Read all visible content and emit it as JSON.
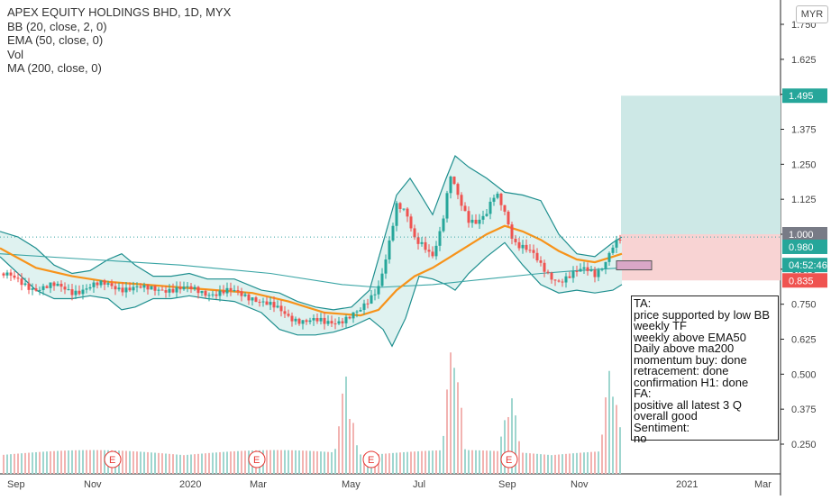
{
  "header": {
    "title": "APEX EQUITY HOLDINGS BHD, 1D, MYX",
    "indicators": [
      "BB (20, close, 2, 0)",
      "EMA (50, close, 0)",
      "Vol",
      "MA (200, close, 0)"
    ],
    "currency": "MYR"
  },
  "notes": {
    "lines": [
      "TA:",
      "price supported by low BB",
      "weekly TF",
      "weekly above EMA50",
      "Daily above ma200",
      "momentum buy: done",
      "retracement: done",
      "confirmation H1: done",
      "FA:",
      "positive all latest 3 Q",
      "overall good",
      "Sentiment:",
      "no"
    ]
  },
  "price_labels": {
    "target": "1.495",
    "current": "1.000",
    "last": "0.980",
    "countdown": "04:52:46",
    "stop": "0.835"
  },
  "colors": {
    "up": "#26a69a",
    "down": "#ef5350",
    "ema": "#f7931a",
    "ma200": "#3aa5a5",
    "bb": "#1f8f8f",
    "bb_fill": "#dff2f0",
    "target_zone": "#cde8e6",
    "stop_zone": "#f8d3d3",
    "earnings": "#e53935"
  },
  "chart_data": {
    "type": "candlestick",
    "title": "APEX EQUITY HOLDINGS BHD, 1D, MYX",
    "x_ticks": [
      "Sep",
      "Nov",
      "2020",
      "Mar",
      "May",
      "Jul",
      "Sep",
      "Nov",
      "2021",
      "Mar"
    ],
    "y_ticks": [
      "1.750",
      "1.625",
      "1.500",
      "1.375",
      "1.250",
      "1.125",
      "1.000",
      "0.875",
      "0.750",
      "0.625",
      "0.500",
      "0.375",
      "0.250"
    ],
    "ylim": [
      0.2,
      1.77
    ],
    "earnings_markers": [
      "E",
      "E",
      "E",
      "E"
    ],
    "price_path": [
      [
        0,
        0.86
      ],
      [
        20,
        0.83
      ],
      [
        40,
        0.81
      ],
      [
        60,
        0.81
      ],
      [
        80,
        0.8
      ],
      [
        100,
        0.81
      ],
      [
        120,
        0.82
      ],
      [
        140,
        0.81
      ],
      [
        160,
        0.8
      ],
      [
        180,
        0.81
      ],
      [
        200,
        0.8
      ],
      [
        220,
        0.8
      ],
      [
        240,
        0.79
      ],
      [
        260,
        0.79
      ],
      [
        280,
        0.78
      ],
      [
        300,
        0.74
      ],
      [
        320,
        0.71
      ],
      [
        340,
        0.69
      ],
      [
        360,
        0.68
      ],
      [
        380,
        0.7
      ],
      [
        400,
        0.72
      ],
      [
        410,
        0.76
      ],
      [
        420,
        0.82
      ],
      [
        430,
        0.95
      ],
      [
        440,
        1.1
      ],
      [
        450,
        1.07
      ],
      [
        460,
        0.98
      ],
      [
        470,
        0.97
      ],
      [
        480,
        0.93
      ],
      [
        490,
        1.02
      ],
      [
        500,
        1.2
      ],
      [
        510,
        1.12
      ],
      [
        520,
        1.06
      ],
      [
        530,
        1.05
      ],
      [
        540,
        1.07
      ],
      [
        550,
        1.14
      ],
      [
        560,
        1.08
      ],
      [
        570,
        0.98
      ],
      [
        580,
        0.96
      ],
      [
        590,
        0.93
      ],
      [
        600,
        0.88
      ],
      [
        610,
        0.85
      ],
      [
        620,
        0.84
      ],
      [
        630,
        0.85
      ],
      [
        640,
        0.86
      ],
      [
        650,
        0.87
      ],
      [
        660,
        0.86
      ],
      [
        670,
        0.9
      ],
      [
        680,
        0.96
      ],
      [
        690,
        0.98
      ]
    ],
    "ema50": [
      [
        0,
        0.95
      ],
      [
        40,
        0.88
      ],
      [
        80,
        0.85
      ],
      [
        120,
        0.83
      ],
      [
        160,
        0.82
      ],
      [
        200,
        0.81
      ],
      [
        240,
        0.8
      ],
      [
        280,
        0.79
      ],
      [
        320,
        0.76
      ],
      [
        360,
        0.72
      ],
      [
        400,
        0.71
      ],
      [
        420,
        0.73
      ],
      [
        440,
        0.8
      ],
      [
        460,
        0.85
      ],
      [
        480,
        0.88
      ],
      [
        500,
        0.92
      ],
      [
        520,
        0.96
      ],
      [
        540,
        1.0
      ],
      [
        560,
        1.03
      ],
      [
        580,
        1.01
      ],
      [
        600,
        0.98
      ],
      [
        620,
        0.94
      ],
      [
        640,
        0.91
      ],
      [
        660,
        0.9
      ],
      [
        680,
        0.92
      ],
      [
        690,
        0.93
      ]
    ],
    "ma200": [
      [
        0,
        0.93
      ],
      [
        100,
        0.91
      ],
      [
        200,
        0.89
      ],
      [
        300,
        0.86
      ],
      [
        380,
        0.82
      ],
      [
        420,
        0.81
      ],
      [
        480,
        0.82
      ],
      [
        540,
        0.84
      ],
      [
        600,
        0.86
      ],
      [
        640,
        0.87
      ],
      [
        690,
        0.88
      ]
    ],
    "bb_upper": [
      [
        0,
        1.01
      ],
      [
        20,
        0.99
      ],
      [
        40,
        0.95
      ],
      [
        60,
        0.89
      ],
      [
        80,
        0.86
      ],
      [
        100,
        0.87
      ],
      [
        120,
        0.91
      ],
      [
        135,
        0.93
      ],
      [
        150,
        0.89
      ],
      [
        170,
        0.85
      ],
      [
        190,
        0.85
      ],
      [
        210,
        0.86
      ],
      [
        230,
        0.84
      ],
      [
        260,
        0.84
      ],
      [
        290,
        0.8
      ],
      [
        310,
        0.79
      ],
      [
        330,
        0.76
      ],
      [
        350,
        0.74
      ],
      [
        370,
        0.73
      ],
      [
        390,
        0.74
      ],
      [
        410,
        0.8
      ],
      [
        425,
        0.97
      ],
      [
        440,
        1.14
      ],
      [
        455,
        1.2
      ],
      [
        465,
        1.15
      ],
      [
        480,
        1.07
      ],
      [
        495,
        1.2
      ],
      [
        505,
        1.28
      ],
      [
        520,
        1.24
      ],
      [
        540,
        1.2
      ],
      [
        560,
        1.15
      ],
      [
        580,
        1.14
      ],
      [
        600,
        1.12
      ],
      [
        620,
        1.0
      ],
      [
        640,
        0.93
      ],
      [
        660,
        0.92
      ],
      [
        680,
        0.97
      ],
      [
        690,
        0.99
      ]
    ],
    "bb_lower": [
      [
        0,
        0.92
      ],
      [
        20,
        0.86
      ],
      [
        40,
        0.8
      ],
      [
        60,
        0.77
      ],
      [
        80,
        0.77
      ],
      [
        100,
        0.78
      ],
      [
        120,
        0.77
      ],
      [
        135,
        0.73
      ],
      [
        150,
        0.74
      ],
      [
        170,
        0.77
      ],
      [
        190,
        0.77
      ],
      [
        210,
        0.78
      ],
      [
        230,
        0.77
      ],
      [
        260,
        0.76
      ],
      [
        290,
        0.72
      ],
      [
        310,
        0.66
      ],
      [
        330,
        0.64
      ],
      [
        350,
        0.64
      ],
      [
        370,
        0.65
      ],
      [
        390,
        0.67
      ],
      [
        410,
        0.7
      ],
      [
        425,
        0.66
      ],
      [
        435,
        0.6
      ],
      [
        450,
        0.7
      ],
      [
        465,
        0.85
      ],
      [
        480,
        0.84
      ],
      [
        495,
        0.82
      ],
      [
        505,
        0.8
      ],
      [
        520,
        0.86
      ],
      [
        540,
        0.92
      ],
      [
        560,
        0.97
      ],
      [
        580,
        0.89
      ],
      [
        600,
        0.82
      ],
      [
        620,
        0.79
      ],
      [
        640,
        0.8
      ],
      [
        660,
        0.79
      ],
      [
        680,
        0.8
      ],
      [
        690,
        0.82
      ]
    ],
    "position": {
      "target": 1.495,
      "entry": 0.98,
      "stop": 0.835
    },
    "volume_peaks": [
      [
        384,
        0.36
      ],
      [
        503,
        0.56
      ],
      [
        566,
        0.3
      ],
      [
        678,
        0.43
      ]
    ]
  }
}
